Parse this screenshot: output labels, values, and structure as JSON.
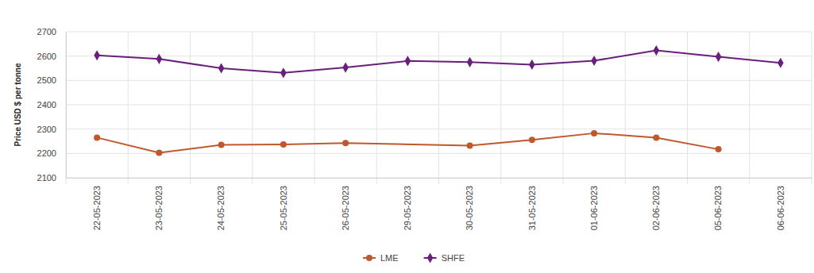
{
  "chart_data": {
    "type": "line",
    "ylabel": "Price USD $ per tonne",
    "categories": [
      "22-05-2023",
      "23-05-2023",
      "24-05-2023",
      "25-05-2023",
      "26-05-2023",
      "29-05-2023",
      "30-05-2023",
      "31-05-2023",
      "01-06-2023",
      "02-06-2023",
      "05-06-2023",
      "06-06-2023"
    ],
    "series": [
      {
        "name": "LME",
        "color": "#c0582e",
        "marker": "circle",
        "values": [
          2265,
          2203,
          2235,
          2237,
          2243,
          null,
          2232,
          2256,
          2283,
          2265,
          2217,
          null
        ]
      },
      {
        "name": "SHFE",
        "color": "#6b1f7c",
        "marker": "diamond",
        "values": [
          2603,
          2588,
          2550,
          2531,
          2553,
          2580,
          2575,
          2565,
          2581,
          2623,
          2597,
          2572
        ]
      }
    ],
    "ylim": [
      2100,
      2700
    ],
    "yticks": [
      2100,
      2200,
      2300,
      2400,
      2500,
      2600,
      2700
    ],
    "grid": true,
    "legend": "bottom"
  }
}
